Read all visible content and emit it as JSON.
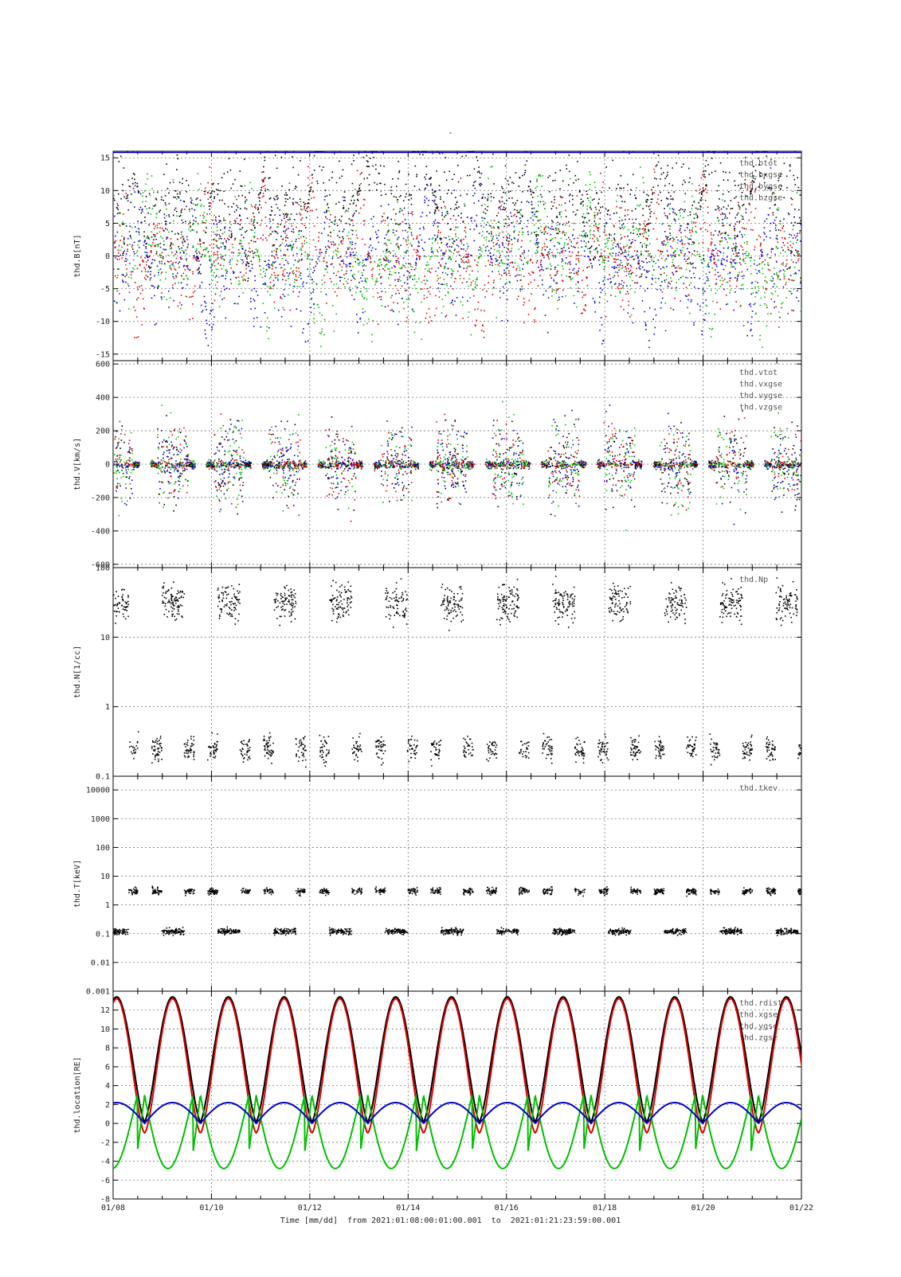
{
  "page": {
    "title": "-",
    "time_range": "Time [mm/dd]  from 2021:01:08:00:01:00.001  to  2021:01:21:23:59:00.001"
  },
  "colors": {
    "black": "#000000",
    "red": "#e00000",
    "green": "#00c000",
    "blue": "#0000d0",
    "grid": "#777777"
  },
  "chart_data": [
    {
      "type": "scatter",
      "ylabel": "thd.B[nT]",
      "yscale": "linear",
      "ylim": [
        -16,
        16
      ],
      "yticks": [
        -15,
        -10,
        -5,
        0,
        5,
        10,
        15
      ],
      "xlim": [
        "2021-01-08",
        "2021-01-22"
      ],
      "legend_position": "top-right",
      "series": [
        {
          "name": "thd.btot",
          "color": "#000000"
        },
        {
          "name": "thd.bxgse",
          "color": "#e00000"
        },
        {
          "name": "thd.bygse",
          "color": "#00c000"
        },
        {
          "name": "thd.bzgse",
          "color": "#0000d0"
        }
      ]
    },
    {
      "type": "scatter",
      "ylabel": "thd.V[km/s]",
      "yscale": "linear",
      "ylim": [
        -620,
        620
      ],
      "yticks": [
        -600,
        -400,
        -200,
        0,
        200,
        400,
        600
      ],
      "xlim": [
        "2021-01-08",
        "2021-01-22"
      ],
      "legend_position": "top-right",
      "series": [
        {
          "name": "thd.vtot",
          "color": "#000000"
        },
        {
          "name": "thd.vxgse",
          "color": "#e00000"
        },
        {
          "name": "thd.vygse",
          "color": "#00c000"
        },
        {
          "name": "thd.vzgse",
          "color": "#0000d0"
        }
      ]
    },
    {
      "type": "scatter",
      "ylabel": "thd.N[1/cc]",
      "yscale": "log",
      "ylim": [
        0.1,
        100
      ],
      "yticks": [
        0.1,
        1,
        10,
        100
      ],
      "ytick_labels": [
        "0.1",
        "1",
        "10",
        "100"
      ],
      "xlim": [
        "2021-01-08",
        "2021-01-22"
      ],
      "legend_position": "top-right",
      "series": [
        {
          "name": "thd.Np",
          "color": "#000000"
        }
      ]
    },
    {
      "type": "scatter",
      "ylabel": "thd.T[keV]",
      "yscale": "log",
      "ylim": [
        0.001,
        30000
      ],
      "yticks": [
        0.001,
        0.01,
        0.1,
        1,
        10,
        100,
        1000,
        10000
      ],
      "ytick_labels": [
        "0.001",
        "0.01",
        "0.1",
        "1",
        "10",
        "100",
        "1000",
        "10000"
      ],
      "xlim": [
        "2021-01-08",
        "2021-01-22"
      ],
      "legend_position": "top-right",
      "series": [
        {
          "name": "thd.tkev",
          "color": "#000000"
        }
      ]
    },
    {
      "type": "line",
      "ylabel": "thd.location[RE]",
      "yscale": "linear",
      "ylim": [
        -8,
        14
      ],
      "yticks": [
        -8,
        -6,
        -4,
        -2,
        0,
        2,
        4,
        6,
        8,
        10,
        12
      ],
      "xlim": [
        "2021-01-08",
        "2021-01-22"
      ],
      "xticks": [
        "01/08",
        "01/10",
        "01/12",
        "01/14",
        "01/16",
        "01/18",
        "01/20",
        "01/22"
      ],
      "legend_position": "top-right",
      "orbit_apogees": [
        "01/09",
        "01/10",
        "01/11",
        "01/12",
        "01/13",
        "01/14",
        "01/15",
        "01/16",
        "01/17",
        "01/18",
        "01/19",
        "01/20",
        "01/21",
        "01/22"
      ],
      "series": [
        {
          "name": "thd.rdist",
          "color": "#000000",
          "range": [
            0,
            13.4
          ]
        },
        {
          "name": "thd.xgse",
          "color": "#e00000",
          "range": [
            -1,
            13.2
          ]
        },
        {
          "name": "thd.ygse",
          "color": "#00c000",
          "range": [
            -6.3,
            3
          ]
        },
        {
          "name": "thd.zgse",
          "color": "#0000d0",
          "range": [
            0,
            2.2
          ]
        }
      ]
    }
  ]
}
